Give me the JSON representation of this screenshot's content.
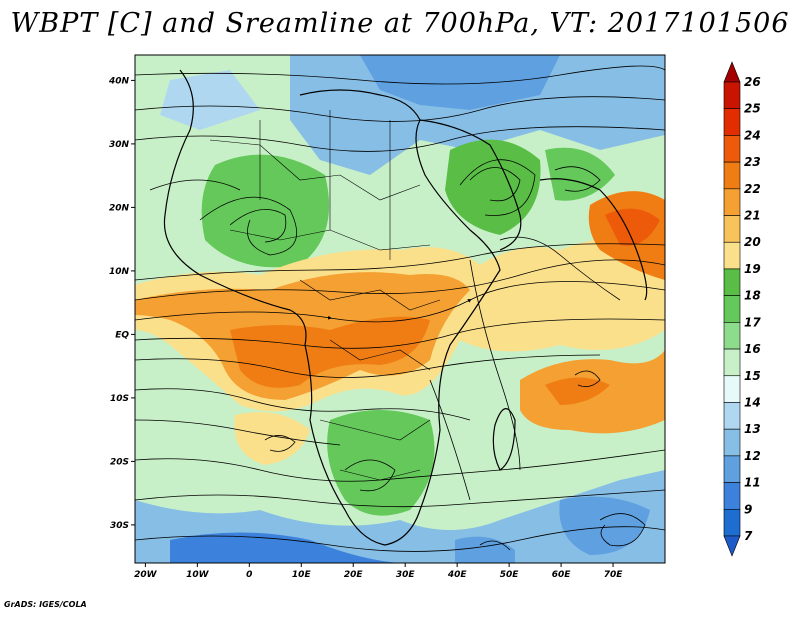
{
  "title": "WBPT [C] and Sreamline at 700hPa, VT: 2017101506",
  "credit": "GrADS: IGES/COLA",
  "map": {
    "variable": "Wet-bulb potential temperature (C) with streamlines",
    "level": "700hPa",
    "valid_time": "2017101506",
    "lat_ticks": [
      "40N",
      "30N",
      "20N",
      "10N",
      "EQ",
      "10S",
      "20S",
      "30S"
    ],
    "lon_ticks": [
      "20W",
      "10W",
      "0",
      "10E",
      "20E",
      "30E",
      "40E",
      "50E",
      "60E",
      "70E"
    ],
    "lat_values": [
      40,
      30,
      20,
      10,
      0,
      -10,
      -20,
      -30
    ],
    "lon_values": [
      -20,
      -10,
      0,
      10,
      20,
      30,
      40,
      50,
      60,
      70
    ],
    "extent": {
      "lon_min": -22,
      "lon_max": 80,
      "lat_min": -36,
      "lat_max": 44
    }
  },
  "colorbar": {
    "levels": [
      "26",
      "25",
      "24",
      "23",
      "22",
      "21",
      "20",
      "19",
      "18",
      "17",
      "16",
      "15",
      "14",
      "13",
      "12",
      "11",
      "9",
      "7"
    ],
    "colors": [
      "#a50000",
      "#c81400",
      "#e12d00",
      "#ec5a0a",
      "#f07d14",
      "#f5a032",
      "#f8c35a",
      "#fbe08c",
      "#5abe46",
      "#64c85a",
      "#8cdc8c",
      "#c8f0c8",
      "#e6fafa",
      "#afd7f0",
      "#87bee6",
      "#5fa0e1",
      "#3c82dc",
      "#1e6ed2",
      "#1e5ac8"
    ]
  }
}
